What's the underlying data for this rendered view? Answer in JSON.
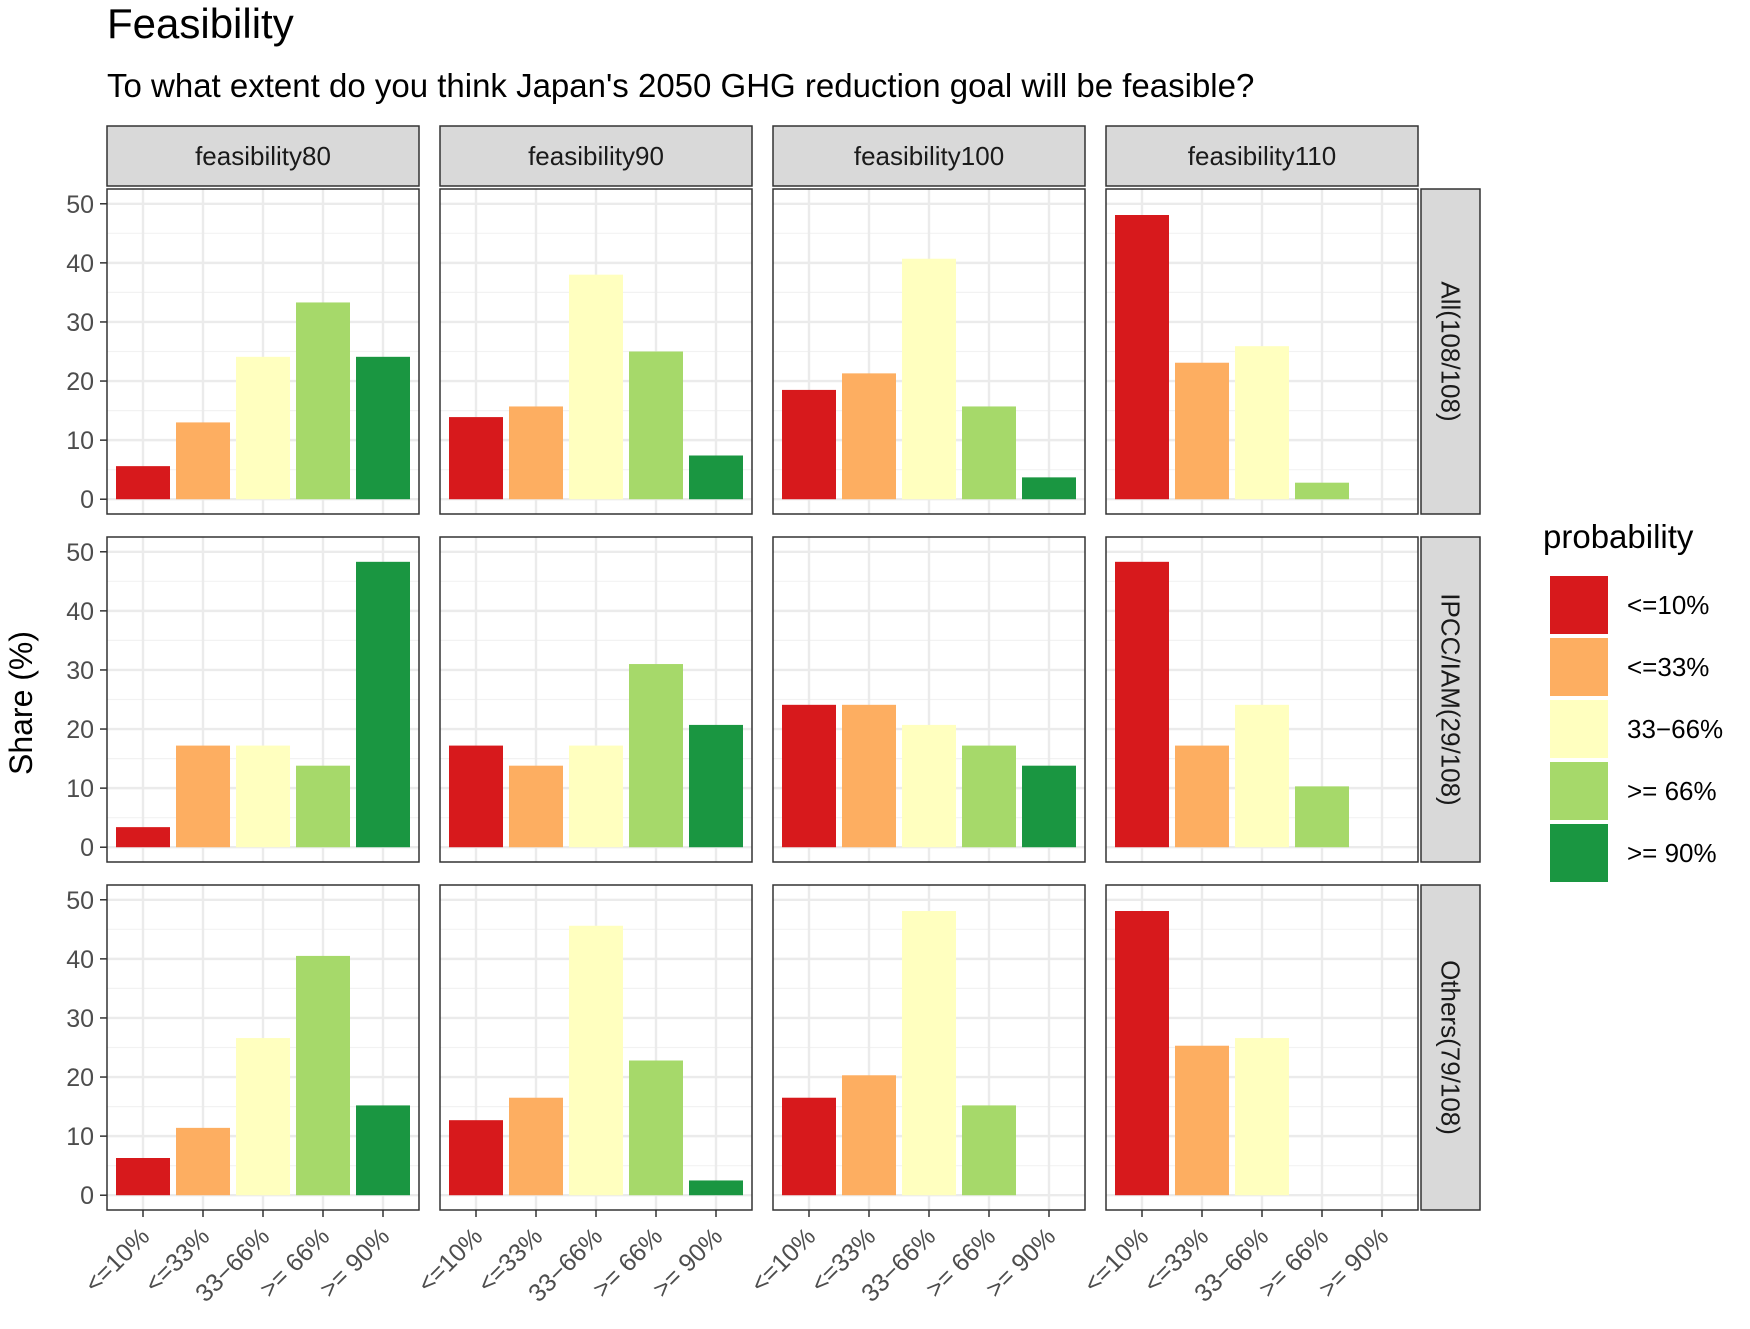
{
  "chart_data": {
    "type": "bar",
    "title": "Feasibility",
    "subtitle": "To what extent do you think Japan's 2050 GHG reduction goal will be feasible?",
    "ylabel": "Share (%)",
    "xlabel": "",
    "ylim": [
      0,
      50
    ],
    "yticks": [
      0,
      10,
      20,
      30,
      40,
      50
    ],
    "grid": true,
    "categories": [
      "<=10%",
      "<=33%",
      "33−66%",
      ">= 66%",
      ">= 90%"
    ],
    "colors": [
      "#d7191c",
      "#fdae61",
      "#ffffbf",
      "#a6d96a",
      "#1a9641"
    ],
    "legend": {
      "title": "probability",
      "position": "right",
      "labels": [
        "<=10%",
        "<=33%",
        "33−66%",
        ">= 66%",
        ">= 90%"
      ]
    },
    "columns": [
      "feasibility80",
      "feasibility90",
      "feasibility100",
      "feasibility110"
    ],
    "rows": [
      "All(108/108)",
      "IPCC/IAM(29/108)",
      "Others(79/108)"
    ],
    "panels": [
      [
        {
          "values": [
            5.6,
            13.0,
            24.1,
            33.3,
            24.1
          ]
        },
        {
          "values": [
            13.9,
            15.7,
            38.0,
            25.0,
            7.4
          ]
        },
        {
          "values": [
            18.5,
            21.3,
            40.7,
            15.7,
            3.7
          ]
        },
        {
          "values": [
            48.1,
            23.1,
            25.9,
            2.8,
            0
          ]
        }
      ],
      [
        {
          "values": [
            3.4,
            17.2,
            17.2,
            13.8,
            48.3
          ]
        },
        {
          "values": [
            17.2,
            13.8,
            17.2,
            31.0,
            20.7
          ]
        },
        {
          "values": [
            24.1,
            24.1,
            20.7,
            17.2,
            13.8
          ]
        },
        {
          "values": [
            48.3,
            17.2,
            24.1,
            10.3,
            0
          ]
        }
      ],
      [
        {
          "values": [
            6.3,
            11.4,
            26.6,
            40.5,
            15.2
          ]
        },
        {
          "values": [
            12.7,
            16.5,
            45.6,
            22.8,
            2.5
          ]
        },
        {
          "values": [
            16.5,
            20.3,
            48.1,
            15.2,
            0
          ]
        },
        {
          "values": [
            48.1,
            25.3,
            26.6,
            0,
            0
          ]
        }
      ]
    ]
  }
}
